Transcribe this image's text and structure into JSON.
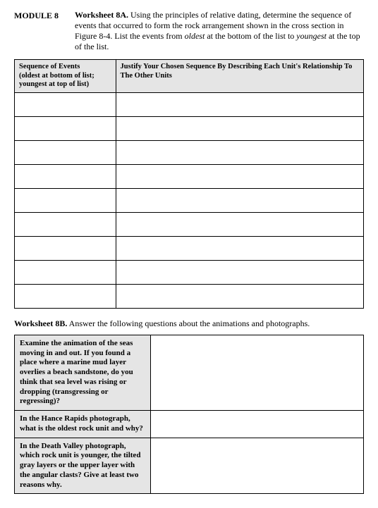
{
  "header": {
    "module_label": "MODULE 8",
    "worksheet_a_title": "Worksheet 8A.",
    "worksheet_a_instr_1": " Using the principles of relative dating, determine the sequence of events that occurred to form the rock arrangement shown in the cross section in Figure 8-4. List the events from ",
    "worksheet_a_instr_oldest": "oldest",
    "worksheet_a_instr_2": " at the bottom of the list to ",
    "worksheet_a_instr_youngest": "youngest",
    "worksheet_a_instr_3": " at the top of the list."
  },
  "tableA": {
    "header_left_line1": "Sequence of Events",
    "header_left_line2": "(oldest at bottom of list; youngest at top of list)",
    "header_right": "Justify Your Chosen Sequence By Describing Each Unit's Relationship To The Other Units",
    "rows": [
      "",
      "",
      "",
      "",
      "",
      "",
      "",
      "",
      ""
    ]
  },
  "sectionB": {
    "title_bold": "Worksheet 8B.",
    "title_rest": " Answer the following questions about the animations and photographs."
  },
  "tableB": {
    "q1": "Examine the animation of the seas moving in and out. If you found a place where a marine mud layer overlies a beach sandstone, do you think that sea level was rising or dropping (transgressing or regressing)?",
    "q2": "In the Hance Rapids photograph, what is the oldest rock unit and why?",
    "q3": "In the Death Valley photograph, which rock unit is younger, the tilted gray layers or the upper layer with the angular clasts? Give at least two reasons why."
  }
}
